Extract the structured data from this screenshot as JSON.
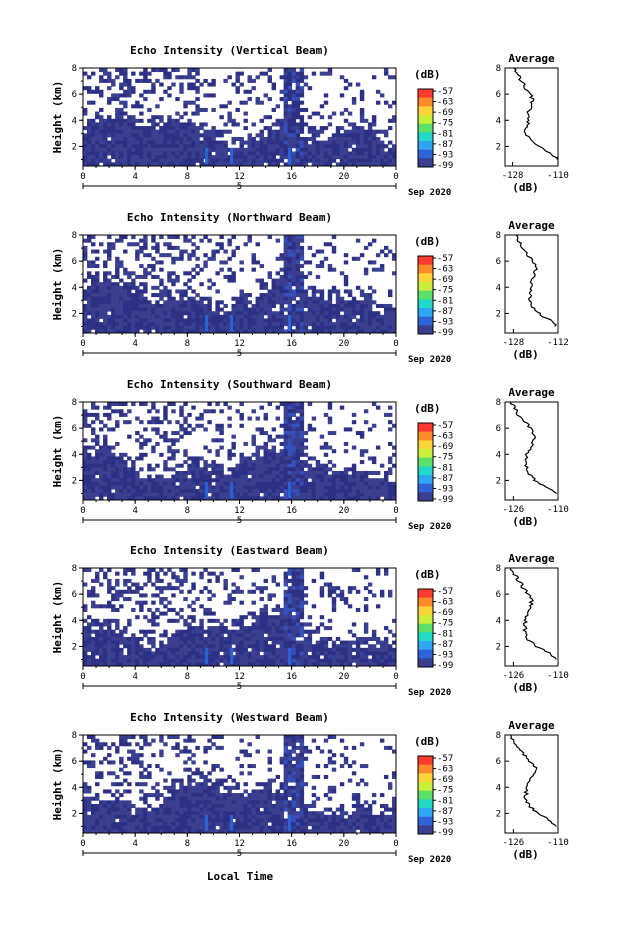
{
  "chart_data": [
    {
      "type": "heatmap",
      "title": "Echo Intensity (Vertical Beam)",
      "ylabel": "Height (km)",
      "y_ticks": [
        "2",
        "4",
        "6",
        "8"
      ],
      "x_ticks": [
        "0",
        "4",
        "8",
        "12",
        "16",
        "20",
        "0"
      ],
      "date_tick": "5",
      "date_label": "Sep 2020",
      "colorbar_unit": "(dB)",
      "colorbar_ticks": [
        "-57",
        "-63",
        "-69",
        "-75",
        "-81",
        "-87",
        "-93",
        "-99"
      ],
      "profile": {
        "title": "Average",
        "xlabel": "(dB)",
        "x_ticks": [
          "-128",
          "-110"
        ],
        "y_ticks": [
          "2",
          "4",
          "6",
          "8"
        ],
        "height_km": [
          1.0,
          1.5,
          2.0,
          2.5,
          3.0,
          3.5,
          4.0,
          4.5,
          5.0,
          5.5,
          6.0,
          6.5,
          7.0,
          7.5,
          8.0
        ],
        "db": [
          -110,
          -113,
          -118,
          -121,
          -123,
          -122.5,
          -121.5,
          -122,
          -121,
          -120,
          -121,
          -123,
          -124.5,
          -126,
          -127.5
        ]
      }
    },
    {
      "type": "heatmap",
      "title": "Echo Intensity (Northward Beam)",
      "ylabel": "Height (km)",
      "y_ticks": [
        "2",
        "4",
        "6",
        "8"
      ],
      "x_ticks": [
        "0",
        "4",
        "8",
        "12",
        "16",
        "20",
        "0"
      ],
      "date_tick": "5",
      "date_label": "Sep 2020",
      "colorbar_unit": "(dB)",
      "colorbar_ticks": [
        "-57",
        "-63",
        "-69",
        "-75",
        "-81",
        "-87",
        "-93",
        "-99"
      ],
      "profile": {
        "title": "Average",
        "xlabel": "(dB)",
        "x_ticks": [
          "-128",
          "-112"
        ],
        "y_ticks": [
          "2",
          "4",
          "6",
          "8"
        ],
        "height_km": [
          1.0,
          1.5,
          2.0,
          2.5,
          3.0,
          3.5,
          4.0,
          4.5,
          5.0,
          5.5,
          6.0,
          6.5,
          7.0,
          7.5,
          8.0
        ],
        "db": [
          -112.5,
          -115,
          -119,
          -121,
          -122.5,
          -122,
          -121,
          -121.5,
          -120.5,
          -119.5,
          -121,
          -123,
          -124.5,
          -126,
          -127
        ]
      }
    },
    {
      "type": "heatmap",
      "title": "Echo Intensity (Southward Beam)",
      "ylabel": "Height (km)",
      "y_ticks": [
        "2",
        "4",
        "6",
        "8"
      ],
      "x_ticks": [
        "0",
        "4",
        "8",
        "12",
        "16",
        "20",
        "0"
      ],
      "date_tick": "5",
      "date_label": "Sep 2020",
      "colorbar_unit": "(dB)",
      "colorbar_ticks": [
        "-57",
        "-63",
        "-69",
        "-75",
        "-81",
        "-87",
        "-93",
        "-99"
      ],
      "profile": {
        "title": "Average",
        "xlabel": "(dB)",
        "x_ticks": [
          "-126",
          "-110"
        ],
        "y_ticks": [
          "2",
          "4",
          "6",
          "8"
        ],
        "height_km": [
          1.0,
          1.5,
          2.0,
          2.5,
          3.0,
          3.5,
          4.0,
          4.5,
          5.0,
          5.5,
          6.0,
          6.5,
          7.0,
          7.5,
          8.0
        ],
        "db": [
          -111,
          -114,
          -118,
          -120.5,
          -121.5,
          -121.5,
          -121,
          -120,
          -119,
          -118.5,
          -120,
          -122,
          -124,
          -125.5,
          -127
        ]
      }
    },
    {
      "type": "heatmap",
      "title": "Echo Intensity (Eastward Beam)",
      "ylabel": "Height (km)",
      "y_ticks": [
        "2",
        "4",
        "6",
        "8"
      ],
      "x_ticks": [
        "0",
        "4",
        "8",
        "12",
        "16",
        "20",
        "0"
      ],
      "date_tick": "5",
      "date_label": "Sep 2020",
      "colorbar_unit": "(dB)",
      "colorbar_ticks": [
        "-57",
        "-63",
        "-69",
        "-75",
        "-81",
        "-87",
        "-93",
        "-99"
      ],
      "profile": {
        "title": "Average",
        "xlabel": "(dB)",
        "x_ticks": [
          "-126",
          "-110"
        ],
        "y_ticks": [
          "2",
          "4",
          "6",
          "8"
        ],
        "height_km": [
          1.0,
          1.5,
          2.0,
          2.5,
          3.0,
          3.5,
          4.0,
          4.5,
          5.0,
          5.5,
          6.0,
          6.5,
          7.0,
          7.5,
          8.0
        ],
        "db": [
          -110,
          -113,
          -117.5,
          -120.5,
          -122,
          -121.5,
          -122,
          -121,
          -120,
          -119.5,
          -120.5,
          -122.5,
          -124,
          -125.5,
          -127
        ]
      }
    },
    {
      "type": "heatmap",
      "title": "Echo Intensity (Westward Beam)",
      "ylabel": "Height (km)",
      "y_ticks": [
        "2",
        "4",
        "6",
        "8"
      ],
      "x_ticks": [
        "0",
        "4",
        "8",
        "12",
        "16",
        "20",
        "0"
      ],
      "date_tick": "5",
      "date_label": "Sep 2020",
      "colorbar_unit": "(dB)",
      "colorbar_ticks": [
        "-57",
        "-63",
        "-69",
        "-75",
        "-81",
        "-87",
        "-93",
        "-99"
      ],
      "profile": {
        "title": "Average",
        "xlabel": "(dB)",
        "x_ticks": [
          "-126",
          "-110"
        ],
        "y_ticks": [
          "2",
          "4",
          "6",
          "8"
        ],
        "height_km": [
          1.0,
          1.5,
          2.0,
          2.5,
          3.0,
          3.5,
          4.0,
          4.5,
          5.0,
          5.5,
          6.0,
          6.5,
          7.0,
          7.5,
          8.0
        ],
        "db": [
          -110.5,
          -113,
          -117,
          -120,
          -121.5,
          -121.5,
          -121,
          -120,
          -119,
          -118,
          -120,
          -122,
          -124,
          -125.5,
          -127
        ]
      }
    }
  ],
  "x_axis_label": "Local Time",
  "colors": {
    "echo_base": "#3a3f8f",
    "echo_dark": "#2d3185",
    "echo_hot": "#2a63d8",
    "colorbar": [
      "#ff3b2f",
      "#ff8a2a",
      "#ffd33a",
      "#c9ef3a",
      "#5de06a",
      "#22d8c6",
      "#2fa6f2",
      "#2f63da",
      "#3a3f8f"
    ]
  }
}
